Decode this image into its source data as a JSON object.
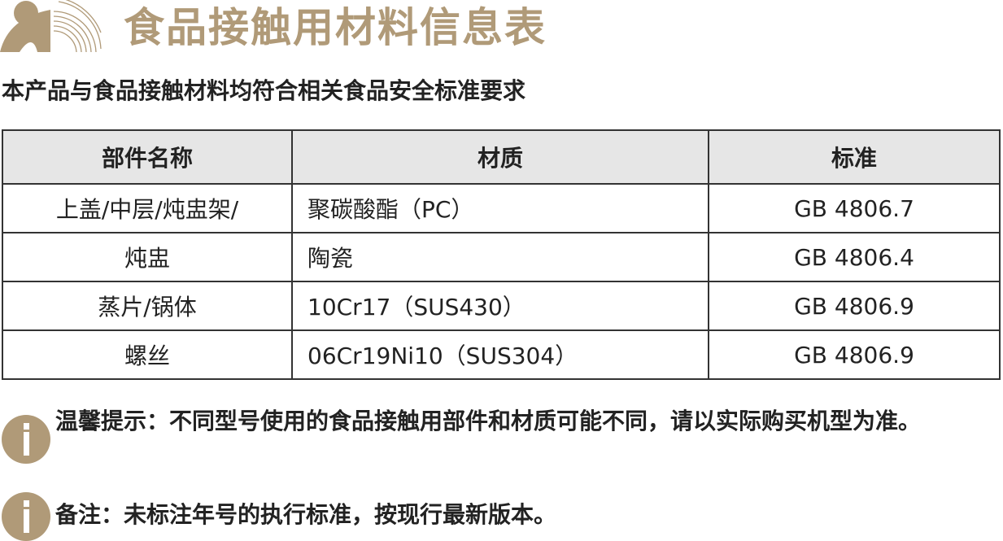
{
  "header": {
    "title": "食品接触用材料信息表",
    "subtitle": "本产品与食品接触材料均符合相关食品安全标准要求",
    "brand_color": "#b09a78"
  },
  "table": {
    "headers": [
      "部件名称",
      "材质",
      "标准"
    ],
    "rows": [
      [
        "上盖/中层/炖盅架/",
        "聚碳酸酯（PC）",
        "GB 4806.7"
      ],
      [
        "炖盅",
        "陶瓷",
        "GB 4806.4"
      ],
      [
        "蒸片/锅体",
        "10Cr17（SUS430）",
        "GB 4806.9"
      ],
      [
        "螺丝",
        "06Cr19Ni10（SUS304）",
        "GB 4806.9"
      ]
    ]
  },
  "notes": [
    {
      "icon": "info-icon",
      "text": "温馨提示：不同型号使用的食品接触用部件和材质可能不同，请以实际购买机型为准。"
    },
    {
      "icon": "info-icon",
      "text": "备注：未标注年号的执行标准，按现行最新版本。"
    }
  ]
}
